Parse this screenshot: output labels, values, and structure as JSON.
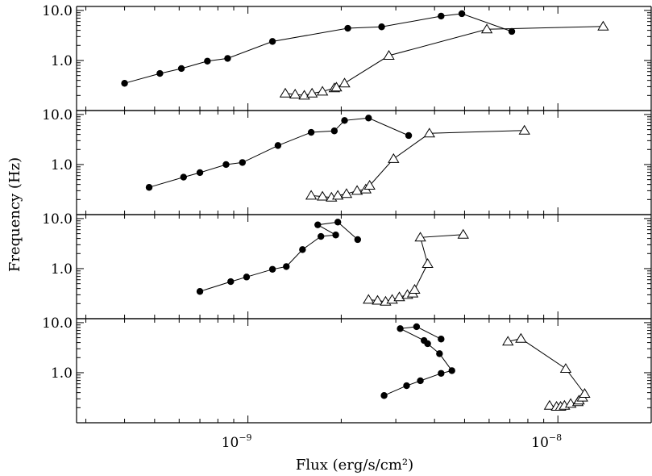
{
  "chart_data": {
    "type": "scatter",
    "layout": "4 vertically stacked panels sharing a logarithmic x axis",
    "xlabel": "Flux (erg/s/cm²)",
    "ylabel": "Frequency (Hz)",
    "xscale": "log",
    "yscale": "log",
    "xlim": [
      2.8e-10,
      2e-08
    ],
    "ylim": [
      0.1,
      12
    ],
    "x_tick_labels": [
      {
        "value": 1e-09,
        "base": "10",
        "exponent": "−9"
      },
      {
        "value": 1e-08,
        "base": "10",
        "exponent": "−8"
      }
    ],
    "y_tick_labels": [
      {
        "value": 10,
        "label": "10.0"
      },
      {
        "value": 1,
        "label": "1.0"
      }
    ],
    "grid": false,
    "marker_styles": {
      "circle": "filled black circle",
      "triangle": "open triangle"
    },
    "panels": [
      {
        "series": [
          {
            "marker": "circle",
            "points": [
              [
                4e-10,
                0.35
              ],
              [
                5.2e-10,
                0.55
              ],
              [
                6.1e-10,
                0.69
              ],
              [
                7.4e-10,
                0.97
              ],
              [
                8.6e-10,
                1.1
              ],
              [
                1.2e-09,
                2.4
              ],
              [
                2.1e-09,
                4.4
              ],
              [
                2.7e-09,
                4.7
              ],
              [
                4.2e-09,
                7.7
              ],
              [
                4.9e-09,
                8.6
              ],
              [
                7.1e-09,
                3.8
              ]
            ]
          },
          {
            "marker": "triangle",
            "points": [
              [
                1.32e-09,
                0.22
              ],
              [
                1.42e-09,
                0.21
              ],
              [
                1.52e-09,
                0.2
              ],
              [
                1.61e-09,
                0.22
              ],
              [
                1.74e-09,
                0.24
              ],
              [
                1.9e-09,
                0.28
              ],
              [
                1.93e-09,
                0.29
              ],
              [
                2.05e-09,
                0.35
              ],
              [
                2.85e-09,
                1.25
              ],
              [
                5.9e-09,
                4.2
              ],
              [
                1.4e-08,
                4.8
              ]
            ]
          }
        ]
      },
      {
        "series": [
          {
            "marker": "circle",
            "points": [
              [
                4.8e-10,
                0.35
              ],
              [
                6.2e-10,
                0.56
              ],
              [
                7e-10,
                0.69
              ],
              [
                8.5e-10,
                1.0
              ],
              [
                9.6e-10,
                1.1
              ],
              [
                1.25e-09,
                2.4
              ],
              [
                1.6e-09,
                4.4
              ],
              [
                1.9e-09,
                4.7
              ],
              [
                2.05e-09,
                7.6
              ],
              [
                2.45e-09,
                8.5
              ],
              [
                3.3e-09,
                3.8
              ]
            ]
          },
          {
            "marker": "triangle",
            "points": [
              [
                1.6e-09,
                0.24
              ],
              [
                1.74e-09,
                0.23
              ],
              [
                1.86e-09,
                0.22
              ],
              [
                1.95e-09,
                0.24
              ],
              [
                2.08e-09,
                0.26
              ],
              [
                2.25e-09,
                0.3
              ],
              [
                2.4e-09,
                0.32
              ],
              [
                2.47e-09,
                0.38
              ],
              [
                2.95e-09,
                1.3
              ],
              [
                3.85e-09,
                4.2
              ],
              [
                7.8e-09,
                4.8
              ]
            ]
          }
        ]
      },
      {
        "series": [
          {
            "marker": "circle",
            "points": [
              [
                7e-10,
                0.35
              ],
              [
                8.8e-10,
                0.55
              ],
              [
                9.9e-10,
                0.68
              ],
              [
                1.2e-09,
                0.97
              ],
              [
                1.33e-09,
                1.1
              ],
              [
                1.5e-09,
                2.4
              ],
              [
                1.72e-09,
                4.4
              ],
              [
                1.92e-09,
                4.7
              ],
              [
                1.68e-09,
                7.5
              ],
              [
                1.95e-09,
                8.5
              ],
              [
                2.26e-09,
                3.8
              ]
            ]
          },
          {
            "marker": "triangle",
            "points": [
              [
                2.45e-09,
                0.24
              ],
              [
                2.62e-09,
                0.23
              ],
              [
                2.78e-09,
                0.22
              ],
              [
                2.92e-09,
                0.24
              ],
              [
                3.08e-09,
                0.27
              ],
              [
                3.27e-09,
                0.3
              ],
              [
                3.4e-09,
                0.32
              ],
              [
                3.45e-09,
                0.38
              ],
              [
                3.8e-09,
                1.25
              ],
              [
                3.6e-09,
                4.2
              ],
              [
                4.95e-09,
                4.8
              ]
            ]
          }
        ]
      },
      {
        "series": [
          {
            "marker": "circle",
            "points": [
              [
                2.75e-09,
                0.35
              ],
              [
                3.25e-09,
                0.55
              ],
              [
                3.6e-09,
                0.69
              ],
              [
                4.2e-09,
                0.97
              ],
              [
                4.55e-09,
                1.1
              ],
              [
                4.15e-09,
                2.4
              ],
              [
                3.8e-09,
                3.8
              ],
              [
                3.7e-09,
                4.4
              ],
              [
                3.1e-09,
                7.6
              ],
              [
                3.5e-09,
                8.3
              ],
              [
                4.2e-09,
                4.7
              ]
            ]
          },
          {
            "marker": "triangle",
            "points": [
              [
                9.4e-09,
                0.22
              ],
              [
                9.9e-09,
                0.21
              ],
              [
                1.02e-08,
                0.21
              ],
              [
                1.05e-08,
                0.22
              ],
              [
                1.1e-08,
                0.24
              ],
              [
                1.16e-08,
                0.26
              ],
              [
                1.17e-08,
                0.28
              ],
              [
                1.2e-08,
                0.32
              ],
              [
                1.22e-08,
                0.38
              ],
              [
                1.06e-08,
                1.2
              ],
              [
                7.6e-09,
                4.8
              ],
              [
                6.9e-09,
                4.2
              ]
            ]
          }
        ]
      }
    ]
  }
}
